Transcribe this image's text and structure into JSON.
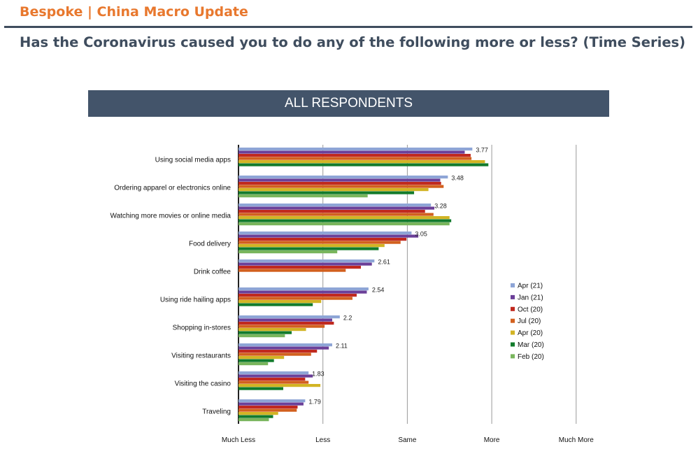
{
  "header": {
    "brand": "Bespoke | China Macro Update",
    "question": "Has the Coronavirus caused you to do any of the following more or less? (Time Series)"
  },
  "banner": {
    "text": "ALL RESPONDENTS"
  },
  "chart_data": {
    "type": "bar",
    "orientation": "horizontal",
    "title": "",
    "xlim": [
      1,
      5
    ],
    "x_ticks": [
      {
        "value": 1,
        "label": "Much Less"
      },
      {
        "value": 2,
        "label": "Less"
      },
      {
        "value": 3,
        "label": "Same"
      },
      {
        "value": 4,
        "label": "More"
      },
      {
        "value": 5,
        "label": "Much More"
      }
    ],
    "grid": "vertical",
    "legend_position": "right",
    "categories": [
      "Using social media apps",
      "Ordering apparel or electronics online",
      "Watching more movies or online media",
      "Food delivery",
      "Drink coffee",
      "Using ride hailing apps",
      "Shopping in-stores",
      "Visiting restaurants",
      "Visiting the casino",
      "Traveling"
    ],
    "data_labels": [
      "3.77",
      "3.48",
      "3.28",
      "3.05",
      "2.61",
      "2.54",
      "2.2",
      "2.11",
      "1.83",
      "1.79"
    ],
    "series": [
      {
        "name": "Apr (21)",
        "color": "#8ea5d6",
        "values": [
          3.77,
          3.48,
          3.28,
          3.05,
          2.61,
          2.54,
          2.2,
          2.11,
          1.83,
          1.79
        ]
      },
      {
        "name": "Jan (21)",
        "color": "#6b3f98",
        "values": [
          3.68,
          3.39,
          3.32,
          3.13,
          2.58,
          2.52,
          2.11,
          2.07,
          1.88,
          1.77
        ]
      },
      {
        "name": "Oct (20)",
        "color": "#c0291f",
        "values": [
          3.75,
          3.4,
          3.21,
          2.99,
          2.45,
          2.4,
          2.13,
          1.93,
          1.79,
          1.7
        ]
      },
      {
        "name": "Jul (20)",
        "color": "#d2601e",
        "values": [
          3.76,
          3.43,
          3.31,
          2.92,
          2.27,
          2.35,
          2.02,
          1.86,
          1.83,
          1.69
        ]
      },
      {
        "name": "Apr (20)",
        "color": "#d2b424",
        "values": [
          3.92,
          3.25,
          3.5,
          2.73,
          null,
          1.98,
          1.8,
          1.54,
          1.97,
          1.47
        ]
      },
      {
        "name": "Mar (20)",
        "color": "#127b2c",
        "values": [
          3.96,
          3.08,
          3.52,
          2.66,
          null,
          1.88,
          1.63,
          1.42,
          1.53,
          1.41
        ]
      },
      {
        "name": "Feb (20)",
        "color": "#79b55c",
        "values": [
          null,
          2.53,
          3.5,
          2.17,
          null,
          null,
          1.55,
          1.35,
          null,
          1.36
        ]
      }
    ]
  }
}
